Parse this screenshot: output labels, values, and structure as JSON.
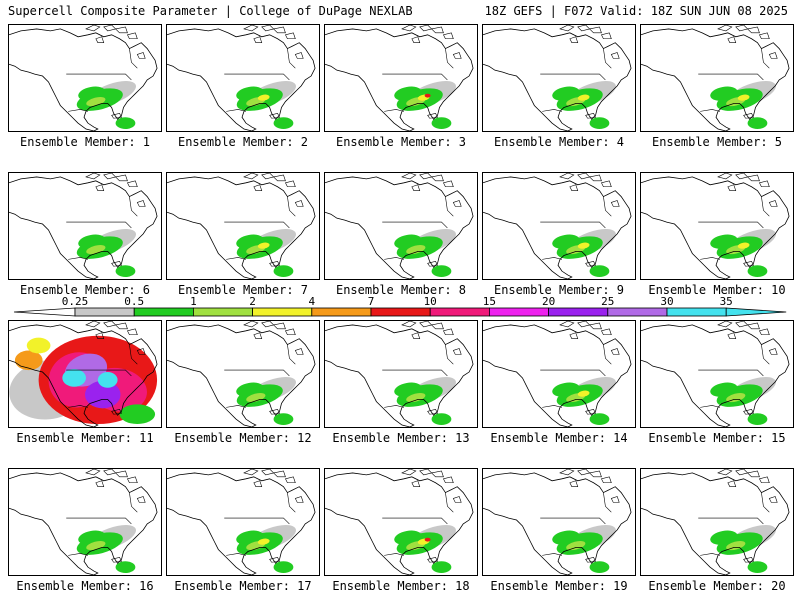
{
  "header": {
    "left": "Supercell Composite Parameter | College of DuPage NEXLAB",
    "right": "18Z GEFS | F072 Valid: 18Z SUN JUN 08 2025"
  },
  "colors": {
    "background": "#ffffff",
    "coast": "#000000",
    "scale": [
      "#c8c8c8",
      "#22cc22",
      "#a0e040",
      "#f2f22a",
      "#f59a1a",
      "#e81818",
      "#f01a7a",
      "#ee22ee",
      "#9a22ee",
      "#b06ae6",
      "#44e2ee"
    ]
  },
  "legend": {
    "labels": [
      "0.25",
      "0.5",
      "1",
      "2",
      "4",
      "7",
      "10",
      "15",
      "20",
      "25",
      "30",
      "35"
    ]
  },
  "members": [
    {
      "label": "Ensemble Member: 1",
      "intensity": 1
    },
    {
      "label": "Ensemble Member: 2",
      "intensity": 2
    },
    {
      "label": "Ensemble Member: 3",
      "intensity": 3
    },
    {
      "label": "Ensemble Member: 4",
      "intensity": 2
    },
    {
      "label": "Ensemble Member: 5",
      "intensity": 2
    },
    {
      "label": "Ensemble Member: 6",
      "intensity": 1
    },
    {
      "label": "Ensemble Member: 7",
      "intensity": 2
    },
    {
      "label": "Ensemble Member: 8",
      "intensity": 1
    },
    {
      "label": "Ensemble Member: 9",
      "intensity": 2
    },
    {
      "label": "Ensemble Member: 10",
      "intensity": 2
    },
    {
      "label": "Ensemble Member: 11",
      "intensity": 9
    },
    {
      "label": "Ensemble Member: 12",
      "intensity": 1
    },
    {
      "label": "Ensemble Member: 13",
      "intensity": 1
    },
    {
      "label": "Ensemble Member: 14",
      "intensity": 2
    },
    {
      "label": "Ensemble Member: 15",
      "intensity": 1
    },
    {
      "label": "Ensemble Member: 16",
      "intensity": 1
    },
    {
      "label": "Ensemble Member: 17",
      "intensity": 2
    },
    {
      "label": "Ensemble Member: 18",
      "intensity": 3
    },
    {
      "label": "Ensemble Member: 19",
      "intensity": 1
    },
    {
      "label": "Ensemble Member: 20",
      "intensity": 1
    }
  ]
}
